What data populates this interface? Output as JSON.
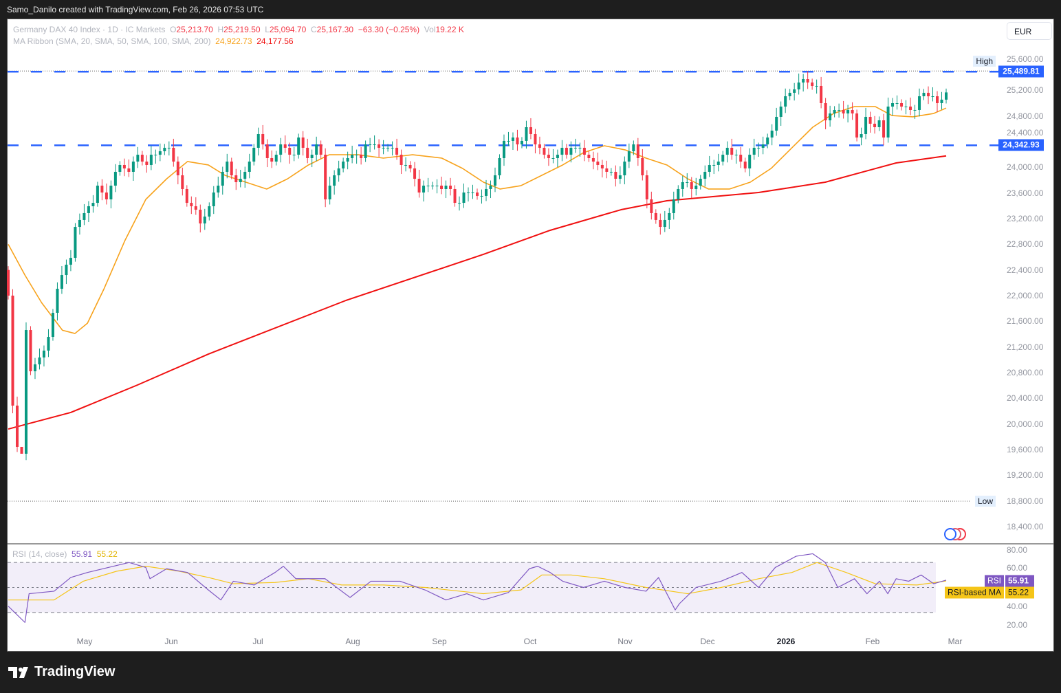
{
  "header": {
    "credit": "Samo_Danilo created with TradingView.com, Feb 26, 2026 07:53 UTC"
  },
  "legend": {
    "symbol": "Germany DAX 40 Index · 1D · IC Markets",
    "o_label": "O",
    "o": "25,213.70",
    "h_label": "H",
    "h": "25,219.50",
    "l_label": "L",
    "l": "25,094.70",
    "c_label": "C",
    "c": "25,167.30",
    "change": "−63.30 (−0.25%)",
    "vol_label": "Vol",
    "vol": "19.22 K",
    "ma_label": "MA Ribbon (SMA, 20, SMA, 50, SMA, 100, SMA, 200)",
    "ma20": "24,922.73",
    "ma200": "24,177.56"
  },
  "currency": "EUR",
  "price_axis": [
    "25,600.00",
    "25,200.00",
    "24,800.00",
    "24,400.00",
    "24,000.00",
    "23,600.00",
    "23,200.00",
    "22,800.00",
    "22,400.00",
    "22,000.00",
    "21,600.00",
    "21,200.00",
    "20,800.00",
    "20,400.00",
    "20,000.00",
    "19,600.00",
    "19,200.00",
    "18,800.00",
    "18,400.00"
  ],
  "levels": {
    "high_label": "High",
    "low_label": "Low",
    "resistance": "25,489.81",
    "support": "24,342.93"
  },
  "months": [
    "May",
    "Jun",
    "Jul",
    "Aug",
    "Sep",
    "Oct",
    "Nov",
    "Dec",
    "2026",
    "Feb",
    "Mar"
  ],
  "rsi": {
    "label": "RSI (14, close)",
    "value": "55.91",
    "ma_value": "55.22",
    "tag": "RSI",
    "ma_tag": "RSI-based MA",
    "axis": [
      "80.00",
      "60.00",
      "40.00",
      "20.00"
    ]
  },
  "brand": "TradingView",
  "colors": {
    "up": "#089981",
    "down": "#f23645",
    "sma20": "#f7a21b",
    "sma200": "#f01010",
    "level": "#2962ff",
    "rsi": "#7e57c2",
    "rsi_ma": "#f5c518"
  },
  "chart_data": {
    "type": "candlestick",
    "price_range": [
      18400,
      25600
    ],
    "levels": [
      25489.81,
      24342.93
    ],
    "high": 25489.81,
    "low": 18800,
    "closes": [
      22000,
      20286,
      19643,
      19536,
      21464,
      20821,
      20929,
      21036,
      21143,
      21357,
      21732,
      22107,
      22321,
      22482,
      22589,
      23071,
      23179,
      23286,
      23393,
      23446,
      23714,
      23607,
      23500,
      23714,
      23929,
      24036,
      23982,
      23929,
      24089,
      24196,
      24089,
      24036,
      24196,
      24196,
      24250,
      24304,
      24304,
      24089,
      23875,
      23661,
      23446,
      23393,
      23339,
      23125,
      23232,
      23393,
      23607,
      23714,
      23929,
      24089,
      23875,
      23768,
      23821,
      23929,
      24089,
      24304,
      24518,
      24357,
      24143,
      24089,
      24196,
      24357,
      24304,
      24196,
      24196,
      24464,
      24304,
      24143,
      24196,
      24357,
      24196,
      23500,
      23714,
      23875,
      23982,
      24089,
      24143,
      24196,
      24196,
      24143,
      24357,
      24357,
      24357,
      24304,
      24304,
      24304,
      24304,
      24196,
      24036,
      24036,
      23982,
      23821,
      23607,
      23714,
      23714,
      23714,
      23714,
      23661,
      23714,
      23661,
      23446,
      23446,
      23607,
      23607,
      23607,
      23554,
      23554,
      23661,
      23714,
      23875,
      24143,
      24411,
      24411,
      24464,
      24357,
      24411,
      24625,
      24518,
      24357,
      24304,
      24196,
      24143,
      24143,
      24196,
      24304,
      24196,
      24304,
      24304,
      24304,
      24196,
      24143,
      24089,
      24036,
      23982,
      23929,
      23929,
      23821,
      23875,
      24089,
      24250,
      24357,
      24143,
      23875,
      23500,
      23286,
      23179,
      23071,
      23179,
      23286,
      23500,
      23661,
      23768,
      23768,
      23661,
      23714,
      23821,
      23929,
      24036,
      24036,
      24089,
      24196,
      24304,
      24196,
      24196,
      24089,
      23982,
      24196,
      24304,
      24304,
      24357,
      24464,
      24571,
      24786,
      24946,
      25107,
      25161,
      25214,
      25321,
      25375,
      25321,
      25268,
      25268,
      25000,
      24732,
      24839,
      24893,
      24893,
      24839,
      24893,
      24839,
      24464,
      24518,
      24786,
      24679,
      24625,
      24732,
      24464,
      24946,
      25000,
      25000,
      24946,
      24946,
      24893,
      24893,
      25107,
      25161,
      25107,
      25107,
      25000,
      25054,
      25167
    ],
    "sma20": [
      [
        0,
        22800
      ],
      [
        4,
        22320
      ],
      [
        8,
        21890
      ],
      [
        13,
        21460
      ],
      [
        16,
        21410
      ],
      [
        19,
        21570
      ],
      [
        23,
        22110
      ],
      [
        28,
        22860
      ],
      [
        33,
        23500
      ],
      [
        38,
        23820
      ],
      [
        43,
        24090
      ],
      [
        48,
        24036
      ],
      [
        52,
        23875
      ],
      [
        57,
        23768
      ],
      [
        62,
        23661
      ],
      [
        67,
        23820
      ],
      [
        72,
        24036
      ],
      [
        77,
        24196
      ],
      [
        84,
        24196
      ],
      [
        90,
        24143
      ],
      [
        97,
        24196
      ],
      [
        104,
        24143
      ],
      [
        109,
        23982
      ],
      [
        114,
        23768
      ],
      [
        118,
        23661
      ],
      [
        123,
        23714
      ],
      [
        128,
        23875
      ],
      [
        133,
        24036
      ],
      [
        138,
        24228
      ],
      [
        143,
        24336
      ],
      [
        148,
        24271
      ],
      [
        153,
        24143
      ],
      [
        158,
        24036
      ],
      [
        163,
        23821
      ],
      [
        168,
        23661
      ],
      [
        173,
        23661
      ],
      [
        178,
        23768
      ],
      [
        183,
        23982
      ],
      [
        188,
        24304
      ],
      [
        193,
        24625
      ],
      [
        198,
        24839
      ],
      [
        203,
        24946
      ],
      [
        208,
        24946
      ],
      [
        212,
        24806
      ],
      [
        217,
        24786
      ],
      [
        222,
        24839
      ],
      [
        225,
        24923
      ]
    ],
    "sma200": [
      [
        0,
        19921
      ],
      [
        15,
        20179
      ],
      [
        31,
        20607
      ],
      [
        48,
        21089
      ],
      [
        81,
        21925
      ],
      [
        114,
        22643
      ],
      [
        130,
        23018
      ],
      [
        147,
        23339
      ],
      [
        158,
        23479
      ],
      [
        180,
        23607
      ],
      [
        196,
        23768
      ],
      [
        213,
        24068
      ],
      [
        225,
        24178
      ]
    ],
    "rsi": [
      [
        0,
        35
      ],
      [
        4,
        22
      ],
      [
        5,
        45
      ],
      [
        11,
        47
      ],
      [
        15,
        58
      ],
      [
        19,
        62
      ],
      [
        24,
        66
      ],
      [
        29,
        70
      ],
      [
        33,
        66
      ],
      [
        34,
        57
      ],
      [
        38,
        65
      ],
      [
        43,
        62
      ],
      [
        48,
        48
      ],
      [
        51,
        40
      ],
      [
        54,
        55
      ],
      [
        59,
        52
      ],
      [
        64,
        62
      ],
      [
        66,
        67
      ],
      [
        69,
        57
      ],
      [
        76,
        57
      ],
      [
        82,
        42
      ],
      [
        87,
        55
      ],
      [
        94,
        55
      ],
      [
        100,
        48
      ],
      [
        105,
        40
      ],
      [
        110,
        45
      ],
      [
        114,
        40
      ],
      [
        120,
        46
      ],
      [
        125,
        65
      ],
      [
        127,
        67
      ],
      [
        130,
        62
      ],
      [
        133,
        55
      ],
      [
        138,
        50
      ],
      [
        143,
        55
      ],
      [
        148,
        50
      ],
      [
        153,
        47
      ],
      [
        156,
        58
      ],
      [
        160,
        32
      ],
      [
        161,
        37
      ],
      [
        165,
        50
      ],
      [
        171,
        55
      ],
      [
        176,
        62
      ],
      [
        180,
        50
      ],
      [
        184,
        66
      ],
      [
        189,
        75
      ],
      [
        193,
        77
      ],
      [
        196,
        70
      ],
      [
        199,
        50
      ],
      [
        203,
        57
      ],
      [
        206,
        45
      ],
      [
        209,
        55
      ],
      [
        211,
        45
      ],
      [
        213,
        57
      ],
      [
        216,
        55
      ],
      [
        219,
        60
      ],
      [
        222,
        53
      ],
      [
        225,
        55.91
      ]
    ],
    "rsi_ma": [
      [
        0,
        40
      ],
      [
        5,
        40
      ],
      [
        11,
        40
      ],
      [
        18,
        55
      ],
      [
        26,
        63
      ],
      [
        33,
        67
      ],
      [
        41,
        63
      ],
      [
        48,
        58
      ],
      [
        54,
        53
      ],
      [
        64,
        54
      ],
      [
        72,
        57
      ],
      [
        80,
        52
      ],
      [
        90,
        52
      ],
      [
        100,
        50
      ],
      [
        114,
        45
      ],
      [
        123,
        48
      ],
      [
        128,
        60
      ],
      [
        135,
        60
      ],
      [
        143,
        57
      ],
      [
        153,
        50
      ],
      [
        163,
        45
      ],
      [
        171,
        50
      ],
      [
        180,
        57
      ],
      [
        188,
        62
      ],
      [
        194,
        70
      ],
      [
        201,
        62
      ],
      [
        208,
        53
      ],
      [
        218,
        52
      ],
      [
        225,
        55.22
      ]
    ],
    "rsi_range": [
      15,
      85
    ],
    "rsi_bands": [
      70,
      50,
      30
    ]
  }
}
